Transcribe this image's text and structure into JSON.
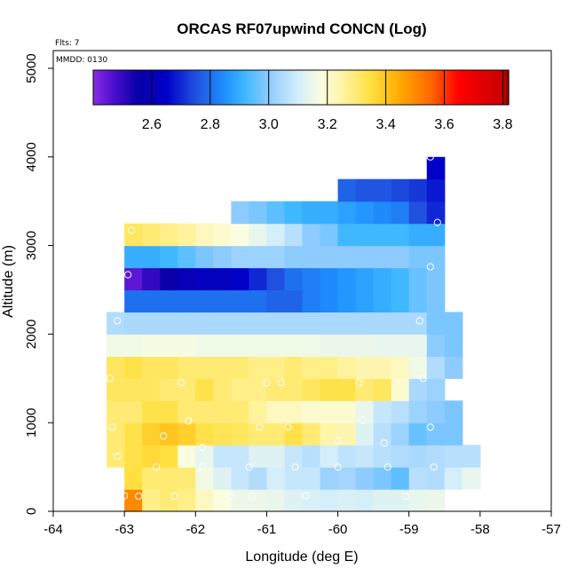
{
  "chart_data": {
    "type": "heatmap",
    "title": "ORCAS RF07upwind CONCN (Log)",
    "xlabel": "Longitude (deg E)",
    "ylabel": "Altitude (m)",
    "xlim": [
      -64,
      -57
    ],
    "ylim": [
      0,
      5200
    ],
    "xticks": [
      -64,
      -63,
      -62,
      -61,
      -60,
      -59,
      -58,
      -57
    ],
    "yticks": [
      0,
      1000,
      2000,
      3000,
      4000,
      5000
    ],
    "xtick_labels": [
      "-64",
      "-63",
      "-62",
      "-61",
      "-60",
      "-59",
      "-58",
      "-57"
    ],
    "ytick_labels": [
      "0",
      "1000",
      "2000",
      "3000",
      "4000",
      "5000"
    ],
    "annotations": {
      "flights": "Flts: 7",
      "date": "MMDD: 0130"
    },
    "colorbar": {
      "range": [
        2.4,
        3.82
      ],
      "ticks": [
        2.6,
        2.8,
        3.0,
        3.2,
        3.4,
        3.6,
        3.8
      ],
      "tick_labels": [
        "2.6",
        "2.8",
        "3.0",
        "3.2",
        "3.4",
        "3.6",
        "3.8"
      ],
      "stops": [
        [
          2.4,
          "#8a2be2"
        ],
        [
          2.47,
          "#4b0fd0"
        ],
        [
          2.55,
          "#0a00a8"
        ],
        [
          2.65,
          "#0000c8"
        ],
        [
          2.75,
          "#2050e0"
        ],
        [
          2.85,
          "#1e90ff"
        ],
        [
          2.92,
          "#40b8ff"
        ],
        [
          3.0,
          "#8ecbff"
        ],
        [
          3.1,
          "#d4eefa"
        ],
        [
          3.18,
          "#fbfde0"
        ],
        [
          3.25,
          "#fff5a8"
        ],
        [
          3.35,
          "#ffe040"
        ],
        [
          3.45,
          "#ffa800"
        ],
        [
          3.55,
          "#ff6a00"
        ],
        [
          3.65,
          "#ff0000"
        ],
        [
          3.8,
          "#c80000"
        ],
        [
          3.82,
          "#8c0000"
        ]
      ]
    },
    "grid": {
      "x0": -63.25,
      "dx": 0.25,
      "rows": [
        {
          "alt": [
            0,
            250
          ],
          "start": -63.0,
          "values": [
            3.5,
            3.28,
            3.3,
            3.28,
            3.22,
            3.18,
            3.15,
            3.15,
            3.14,
            3.12,
            3.11,
            3.1,
            3.11,
            3.1,
            3.12,
            3.12,
            3.14,
            3.15
          ]
        },
        {
          "alt": [
            250,
            500
          ],
          "start": -63.0,
          "values": [
            3.35,
            3.3,
            3.3,
            3.3,
            3.16,
            3.12,
            3.08,
            3.05,
            3.1,
            3.08,
            3.08,
            3.02,
            3.03,
            3.0,
            2.98,
            2.95,
            3.06,
            3.05,
            3.1,
            3.14
          ]
        },
        {
          "alt": [
            500,
            750
          ],
          "start": -63.25,
          "values": [
            3.3,
            3.34,
            3.36,
            3.35,
            3.18,
            3.14,
            3.08,
            3.08,
            3.12,
            3.12,
            3.08,
            3.06,
            3.1,
            3.07,
            3.08,
            3.06,
            3.05,
            3.04,
            3.05,
            3.06,
            3.06
          ]
        },
        {
          "alt": [
            750,
            1000
          ],
          "start": -63.25,
          "values": [
            3.3,
            3.34,
            3.38,
            3.4,
            3.38,
            3.34,
            3.33,
            3.32,
            3.3,
            3.3,
            3.34,
            3.3,
            3.25,
            3.24,
            3.12,
            3.06,
            3.02,
            2.96,
            2.98,
            2.98
          ]
        },
        {
          "alt": [
            1000,
            1250
          ],
          "start": -63.25,
          "values": [
            3.3,
            3.3,
            3.34,
            3.34,
            3.3,
            3.3,
            3.3,
            3.3,
            3.26,
            3.22,
            3.22,
            3.2,
            3.2,
            3.2,
            3.14,
            3.08,
            3.06,
            3.02,
            3.0,
            2.98
          ]
        },
        {
          "alt": [
            1250,
            1500
          ],
          "start": -63.25,
          "values": [
            3.32,
            3.32,
            3.32,
            3.3,
            3.3,
            3.34,
            3.3,
            3.28,
            3.28,
            3.3,
            3.3,
            3.32,
            3.34,
            3.34,
            3.3,
            3.32,
            3.2,
            3.04,
            3.02
          ]
        },
        {
          "alt": [
            1500,
            1750
          ],
          "start": -63.25,
          "values": [
            3.32,
            3.34,
            3.32,
            3.32,
            3.3,
            3.3,
            3.3,
            3.3,
            3.28,
            3.28,
            3.3,
            3.28,
            3.28,
            3.26,
            3.24,
            3.24,
            3.22,
            3.16,
            3.05,
            3.0
          ]
        },
        {
          "alt": [
            1750,
            2000
          ],
          "start": -63.25,
          "values": [
            3.16,
            3.16,
            3.17,
            3.17,
            3.17,
            3.16,
            3.16,
            3.16,
            3.16,
            3.16,
            3.16,
            3.16,
            3.15,
            3.15,
            3.15,
            3.14,
            3.14,
            3.14,
            3.0,
            2.98
          ]
        },
        {
          "alt": [
            2000,
            2250
          ],
          "start": -63.25,
          "values": [
            3.05,
            3.04,
            3.04,
            3.04,
            3.04,
            3.04,
            3.04,
            3.04,
            3.04,
            3.04,
            3.04,
            3.04,
            3.04,
            3.04,
            3.04,
            3.04,
            3.04,
            3.04,
            2.98,
            2.98
          ]
        },
        {
          "alt": [
            2250,
            2500
          ],
          "start": -63.0,
          "values": [
            2.8,
            2.8,
            2.8,
            2.8,
            2.8,
            2.8,
            2.8,
            2.8,
            2.78,
            2.78,
            2.82,
            2.84,
            2.86,
            2.88,
            2.9,
            2.92,
            2.96,
            2.98
          ]
        },
        {
          "alt": [
            2500,
            2750
          ],
          "start": -63.0,
          "values": [
            2.45,
            2.5,
            2.55,
            2.6,
            2.62,
            2.62,
            2.65,
            2.7,
            2.75,
            2.8,
            2.82,
            2.84,
            2.86,
            2.88,
            2.9,
            2.92,
            2.96,
            2.98
          ]
        },
        {
          "alt": [
            2750,
            3000
          ],
          "start": -63.0,
          "values": [
            2.9,
            2.9,
            2.92,
            2.95,
            2.98,
            3.0,
            3.02,
            3.02,
            3.02,
            3.0,
            3.0,
            3.0,
            3.0,
            3.0,
            3.0,
            3.0,
            2.98,
            2.98
          ]
        },
        {
          "alt": [
            3000,
            3250
          ],
          "start": -63.0,
          "values": [
            3.32,
            3.3,
            3.28,
            3.26,
            3.22,
            3.2,
            3.18,
            3.14,
            3.1,
            3.06,
            3.0,
            2.98,
            2.92,
            2.92,
            2.92,
            2.92,
            2.9,
            2.9
          ]
        },
        {
          "alt": [
            3250,
            3500
          ],
          "start": -61.5,
          "values": [
            3.0,
            2.98,
            2.95,
            2.92,
            2.9,
            2.9,
            2.88,
            2.86,
            2.84,
            2.82,
            2.75,
            2.7
          ]
        },
        {
          "alt": [
            3500,
            3750
          ],
          "start": -60.0,
          "values": [
            2.78,
            2.76,
            2.76,
            2.74,
            2.72,
            2.68
          ]
        },
        {
          "alt": [
            3750,
            4000
          ],
          "start": -58.75,
          "values": [
            2.65
          ]
        }
      ]
    },
    "markers": [
      [
        -63.0,
        175
      ],
      [
        -62.8,
        170
      ],
      [
        -62.3,
        170
      ],
      [
        -61.5,
        170
      ],
      [
        -61.2,
        170
      ],
      [
        -60.45,
        175
      ],
      [
        -59.05,
        170
      ],
      [
        -63.05,
        400
      ],
      [
        -62.55,
        500
      ],
      [
        -61.9,
        500
      ],
      [
        -61.25,
        500
      ],
      [
        -60.6,
        500
      ],
      [
        -60.0,
        500
      ],
      [
        -59.3,
        500
      ],
      [
        -58.65,
        500
      ],
      [
        -63.1,
        620
      ],
      [
        -61.9,
        720
      ],
      [
        -59.35,
        770
      ],
      [
        -60.0,
        800
      ],
      [
        -62.45,
        850
      ],
      [
        -63.17,
        950
      ],
      [
        -61.1,
        950
      ],
      [
        -60.7,
        950
      ],
      [
        -58.7,
        950
      ],
      [
        -62.1,
        1020
      ],
      [
        -59.65,
        1030
      ],
      [
        -63.2,
        1500
      ],
      [
        -62.2,
        1450
      ],
      [
        -61.0,
        1450
      ],
      [
        -60.8,
        1450
      ],
      [
        -59.7,
        1450
      ],
      [
        -58.8,
        1500
      ],
      [
        -63.1,
        2150
      ],
      [
        -58.85,
        2150
      ],
      [
        -62.95,
        2670
      ],
      [
        -58.7,
        2760
      ],
      [
        -62.9,
        3170
      ],
      [
        -58.6,
        3260
      ],
      [
        -58.7,
        4000
      ]
    ]
  }
}
